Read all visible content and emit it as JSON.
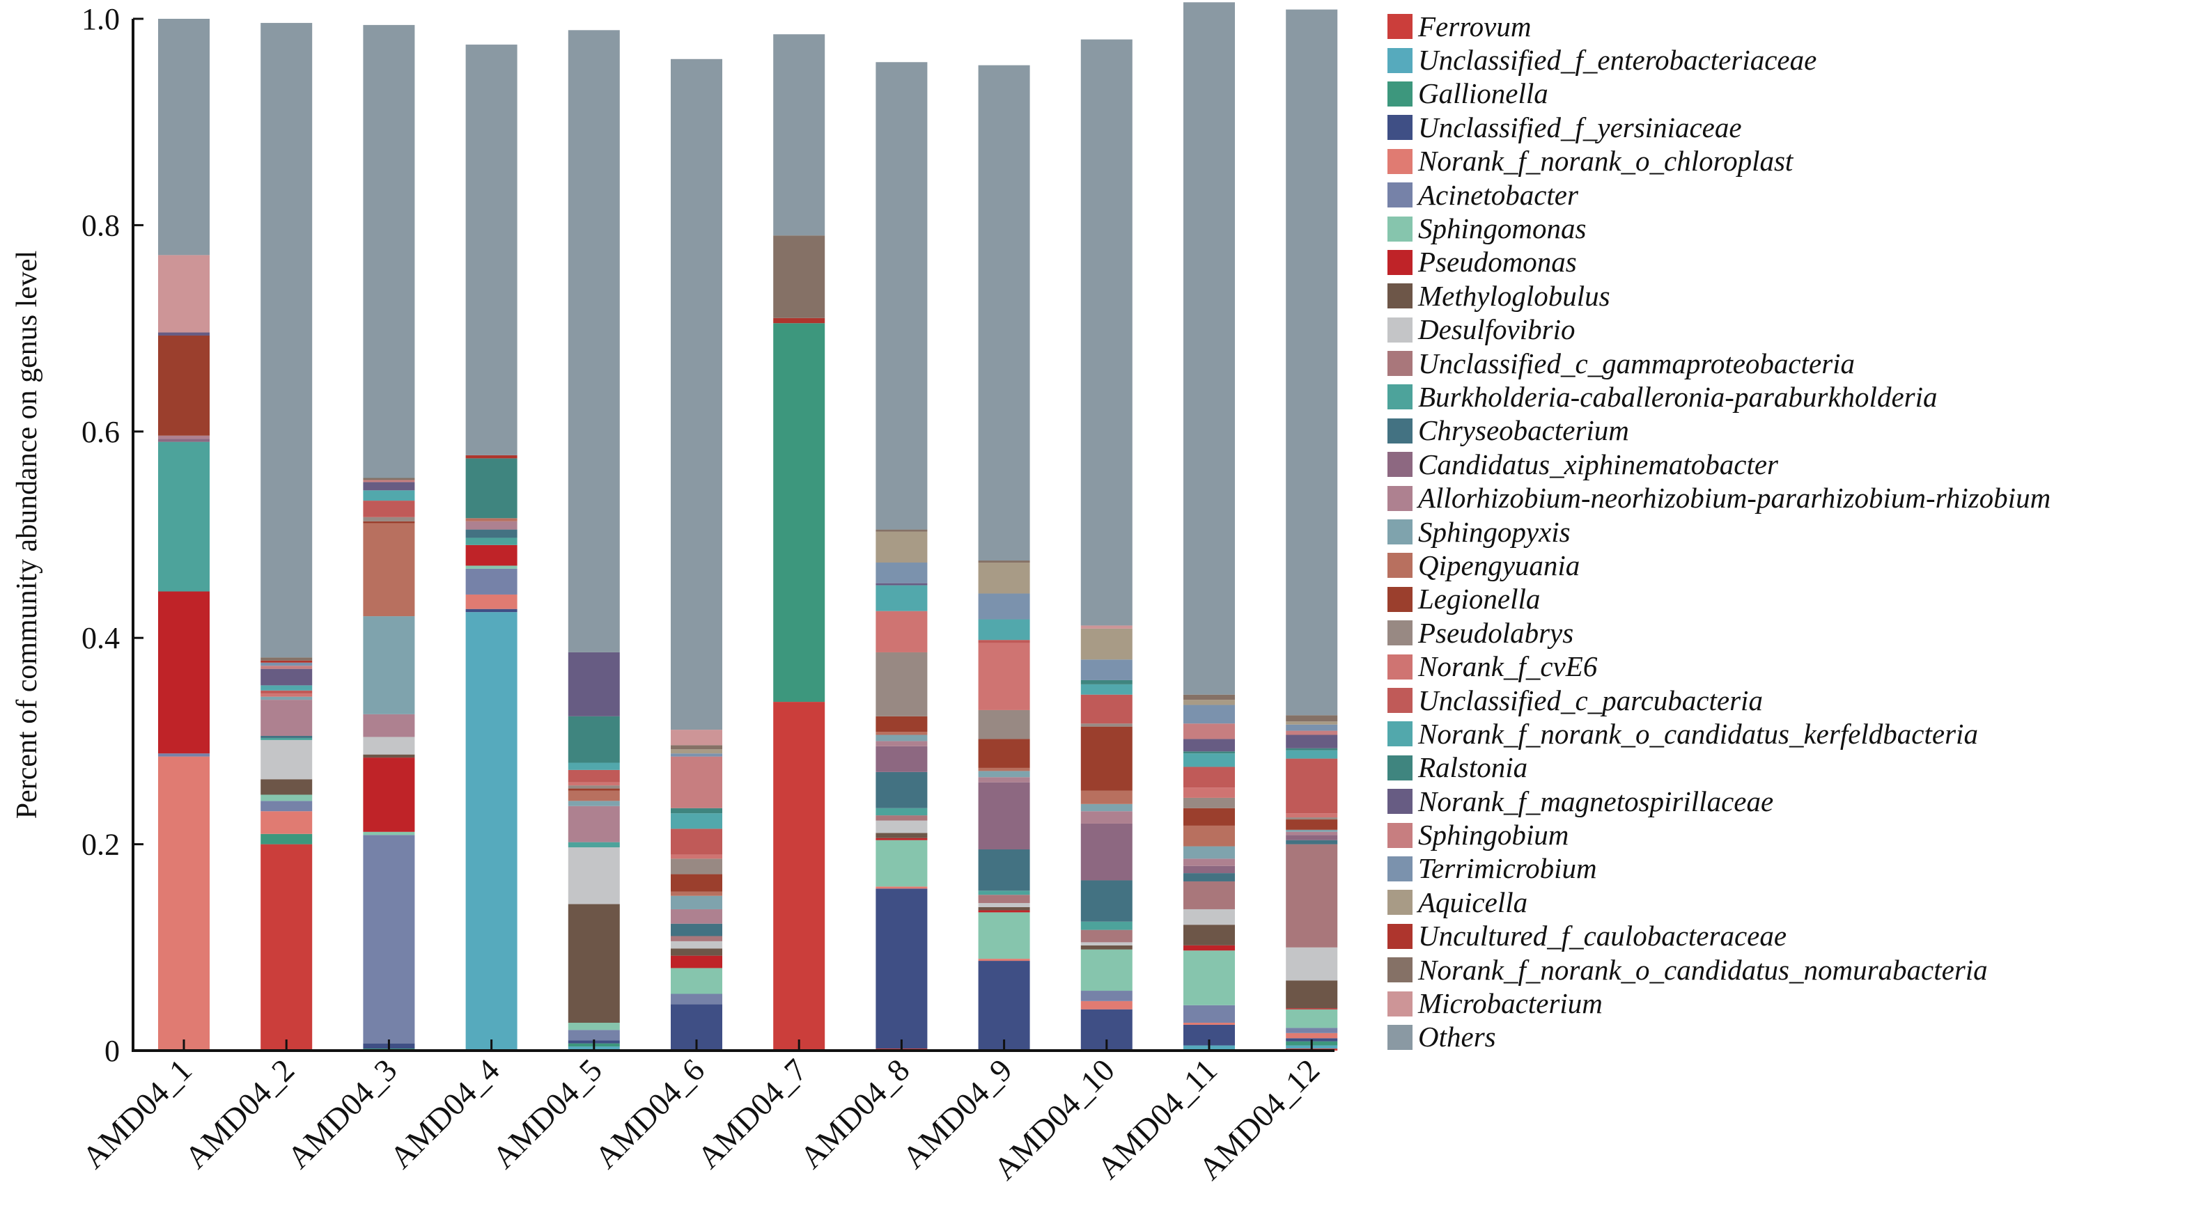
{
  "chart_data": {
    "type": "bar",
    "stacked": true,
    "title": "",
    "xlabel": "",
    "ylabel": "Percent of community abundance on genus level",
    "ylim": [
      0,
      1.0
    ],
    "yticks": [
      0,
      0.2,
      0.4,
      0.6,
      0.8,
      1.0
    ],
    "ytick_labels": [
      "0",
      "0.2",
      "0.4",
      "0.6",
      "0.8",
      "1.0"
    ],
    "grid": false,
    "legend_position": "right",
    "categories": [
      "AMD04_1",
      "AMD04_2",
      "AMD04_3",
      "AMD04_4",
      "AMD04_5",
      "AMD04_6",
      "AMD04_7",
      "AMD04_8",
      "AMD04_9",
      "AMD04_10",
      "AMD04_11",
      "AMD04_12"
    ],
    "series": [
      {
        "name": "Ferrovum",
        "color": "#cb3e3b",
        "values": [
          0.0,
          0.2,
          0.0,
          0.0,
          0.0,
          0.0,
          0.338,
          0.002,
          0.0,
          0.0,
          0.0,
          0.002
        ]
      },
      {
        "name": "Unclassified_f_enterobacteriaceae",
        "color": "#56aabd",
        "values": [
          0.0,
          0.0,
          0.0,
          0.425,
          0.004,
          0.0,
          0.0,
          0.0,
          0.0,
          0.0,
          0.005,
          0.003
        ]
      },
      {
        "name": "Gallionella",
        "color": "#3d977d",
        "values": [
          0.0,
          0.01,
          0.002,
          0.0,
          0.003,
          0.0,
          0.367,
          0.0,
          0.0,
          0.0,
          0.0,
          0.004
        ]
      },
      {
        "name": "Unclassified_f_yersiniaceae",
        "color": "#3f4f85",
        "values": [
          0.0,
          0.0,
          0.005,
          0.003,
          0.003,
          0.045,
          0.0,
          0.155,
          0.087,
          0.04,
          0.02,
          0.003
        ]
      },
      {
        "name": "Norank_f_norank_o_chloroplast",
        "color": "#e07b72",
        "values": [
          0.285,
          0.022,
          0.0,
          0.014,
          0.0,
          0.0,
          0.0,
          0.002,
          0.002,
          0.008,
          0.002,
          0.005
        ]
      },
      {
        "name": "Acinetobacter",
        "color": "#7682a8",
        "values": [
          0.003,
          0.01,
          0.202,
          0.025,
          0.01,
          0.01,
          0.0,
          0.0,
          0.0,
          0.01,
          0.017,
          0.005
        ]
      },
      {
        "name": "Sphingomonas",
        "color": "#86c5ad",
        "values": [
          0.0,
          0.006,
          0.003,
          0.003,
          0.007,
          0.025,
          0.0,
          0.045,
          0.045,
          0.04,
          0.053,
          0.018
        ]
      },
      {
        "name": "Pseudomonas",
        "color": "#bf2328",
        "values": [
          0.157,
          0.0,
          0.072,
          0.02,
          0.0,
          0.012,
          0.0,
          0.002,
          0.002,
          0.0,
          0.005,
          0.001
        ]
      },
      {
        "name": "Methyloglobulus",
        "color": "#6d5648",
        "values": [
          0.0,
          0.015,
          0.003,
          0.0,
          0.115,
          0.007,
          0.0,
          0.005,
          0.003,
          0.004,
          0.02,
          0.027
        ]
      },
      {
        "name": "Desulfovibrio",
        "color": "#c4c5c7",
        "values": [
          0.0,
          0.038,
          0.017,
          0.0,
          0.055,
          0.007,
          0.0,
          0.012,
          0.004,
          0.003,
          0.015,
          0.032
        ]
      },
      {
        "name": "Unclassified_c_gammaproteobacteria",
        "color": "#a9777b",
        "values": [
          0.0,
          0.0,
          0.0,
          0.0,
          0.0,
          0.005,
          0.0,
          0.005,
          0.008,
          0.012,
          0.027,
          0.1
        ]
      },
      {
        "name": "Burkholderia-caballeronia-paraburkholderia",
        "color": "#4da39b",
        "values": [
          0.145,
          0.002,
          0.0,
          0.007,
          0.005,
          0.0,
          0.0,
          0.007,
          0.004,
          0.008,
          0.0,
          0.0
        ]
      },
      {
        "name": "Chryseobacterium",
        "color": "#437282",
        "values": [
          0.0,
          0.002,
          0.0,
          0.008,
          0.0,
          0.012,
          0.0,
          0.035,
          0.04,
          0.04,
          0.008,
          0.004
        ]
      },
      {
        "name": "Candidatus_xiphinematobacter",
        "color": "#8d6881",
        "values": [
          0.003,
          0.0,
          0.0,
          0.0,
          0.0,
          0.0,
          0.0,
          0.025,
          0.065,
          0.055,
          0.007,
          0.005
        ]
      },
      {
        "name": "Allorhizobium-neorhizobium-pararhizobium-rhizobium",
        "color": "#ae8190",
        "values": [
          0.003,
          0.035,
          0.022,
          0.008,
          0.035,
          0.014,
          0.0,
          0.005,
          0.005,
          0.012,
          0.007,
          0.003
        ]
      },
      {
        "name": "Sphingopyxis",
        "color": "#7fa3ad",
        "values": [
          0.0,
          0.003,
          0.095,
          0.0,
          0.005,
          0.013,
          0.0,
          0.006,
          0.006,
          0.007,
          0.012,
          0.002
        ]
      },
      {
        "name": "Qipengyuania",
        "color": "#b8705f",
        "values": [
          0.0,
          0.0,
          0.09,
          0.003,
          0.01,
          0.004,
          0.0,
          0.003,
          0.003,
          0.013,
          0.02,
          0.0
        ]
      },
      {
        "name": "Legionella",
        "color": "#9b3f2d",
        "values": [
          0.097,
          0.0,
          0.002,
          0.0,
          0.002,
          0.017,
          0.0,
          0.015,
          0.028,
          0.062,
          0.017,
          0.01
        ]
      },
      {
        "name": "Pseudolabrys",
        "color": "#988983",
        "values": [
          0.0,
          0.0,
          0.004,
          0.0,
          0.003,
          0.015,
          0.0,
          0.062,
          0.028,
          0.003,
          0.01,
          0.002
        ]
      },
      {
        "name": "Norank_f_cvE6",
        "color": "#cf7472",
        "values": [
          0.0,
          0.003,
          0.0,
          0.0,
          0.003,
          0.004,
          0.0,
          0.04,
          0.065,
          0.0,
          0.01,
          0.004
        ]
      },
      {
        "name": "Unclassified_c_parcubacteria",
        "color": "#c05a58",
        "values": [
          0.0,
          0.003,
          0.016,
          0.0,
          0.012,
          0.025,
          0.0,
          0.0,
          0.003,
          0.028,
          0.02,
          0.053
        ]
      },
      {
        "name": "Norank_f_norank_o_candidatus_kerfeldbacteria",
        "color": "#52a8ac",
        "values": [
          0.0,
          0.005,
          0.01,
          0.0,
          0.007,
          0.015,
          0.0,
          0.025,
          0.02,
          0.01,
          0.013,
          0.008
        ]
      },
      {
        "name": "Ralstonia",
        "color": "#3f857f",
        "values": [
          0.0,
          0.0,
          0.0,
          0.058,
          0.045,
          0.005,
          0.0,
          0.0,
          0.0,
          0.004,
          0.002,
          0.002
        ]
      },
      {
        "name": "Norank_f_magnetospirillaceae",
        "color": "#675c83",
        "values": [
          0.003,
          0.016,
          0.008,
          0.0,
          0.062,
          0.0,
          0.0,
          0.002,
          0.0,
          0.0,
          0.012,
          0.013
        ]
      },
      {
        "name": "Sphingobium",
        "color": "#c77e80",
        "values": [
          0.0,
          0.003,
          0.002,
          0.0,
          0.0,
          0.05,
          0.0,
          0.0,
          0.0,
          0.0,
          0.015,
          0.004
        ]
      },
      {
        "name": "Terrimicrobium",
        "color": "#7b92ad",
        "values": [
          0.0,
          0.003,
          0.0,
          0.0,
          0.0,
          0.003,
          0.0,
          0.02,
          0.025,
          0.02,
          0.018,
          0.006
        ]
      },
      {
        "name": "Aquicella",
        "color": "#a89b86",
        "values": [
          0.0,
          0.0,
          0.0,
          0.0,
          0.0,
          0.004,
          0.0,
          0.03,
          0.03,
          0.03,
          0.005,
          0.003
        ]
      },
      {
        "name": "Uncultured_f_caulobacteraceae",
        "color": "#ae352d",
        "values": [
          0.0,
          0.002,
          0.0,
          0.003,
          0.0,
          0.0,
          0.005,
          0.0,
          0.0,
          0.0,
          0.0,
          0.0
        ]
      },
      {
        "name": "Norank_f_norank_o_candidatus_nomurabacteria",
        "color": "#857166",
        "values": [
          0.0,
          0.003,
          0.002,
          0.0,
          0.0,
          0.004,
          0.08,
          0.002,
          0.002,
          0.0,
          0.005,
          0.006
        ]
      },
      {
        "name": "Microbacterium",
        "color": "#cd9597",
        "values": [
          0.075,
          0.0,
          0.0,
          0.0,
          0.0,
          0.015,
          0.0,
          0.0,
          0.0,
          0.003,
          0.0,
          0.0
        ]
      },
      {
        "name": "Others",
        "color": "#8a99a3",
        "values": [
          0.229,
          0.615,
          0.439,
          0.398,
          0.603,
          0.65,
          0.195,
          0.453,
          0.48,
          0.568,
          0.671,
          0.684
        ]
      }
    ]
  }
}
